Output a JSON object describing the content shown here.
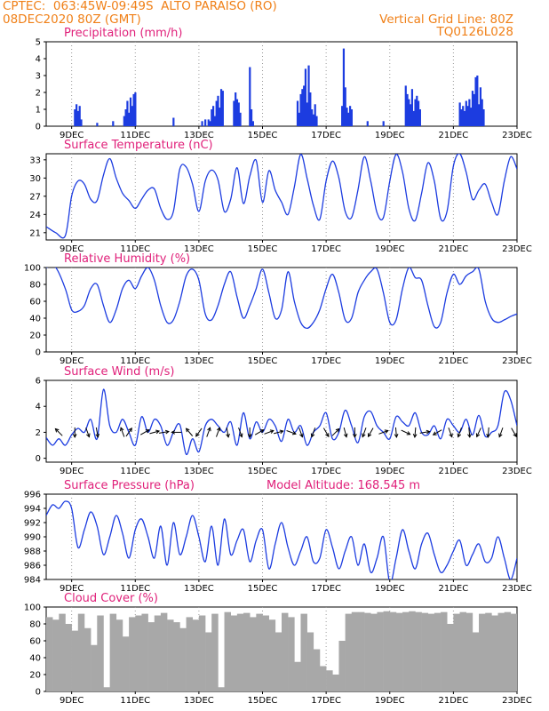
{
  "header": {
    "line1_left": "CPTEC:  063:45W-09:49S  ALTO PARAISO (RO)",
    "line2_left": "08DEC2020 80Z (GMT)",
    "line1_right": "Vertical Grid Line: 80Z",
    "line2_right": "TQ0126L028"
  },
  "colors": {
    "header": "#f08018",
    "title": "#e0207a",
    "line": "#1c3ce0",
    "bar": "#1c3ce0",
    "cloud": "#a8a8a8",
    "arrow": "#000000"
  },
  "chart_data": [
    {
      "type": "bar",
      "title": "Precipitation (mm/h)",
      "xlabel": "",
      "ylabel": "",
      "ylim": [
        0,
        5
      ],
      "yticks": [
        0,
        1,
        2,
        3,
        4,
        5
      ],
      "x_range_days": [
        8.2,
        23.0
      ],
      "x_ticks": [
        "9DEC",
        "11DEC",
        "13DEC",
        "15DEC",
        "17DEC",
        "19DEC",
        "21DEC",
        "23DEC"
      ],
      "x": [
        9.1,
        9.15,
        9.2,
        9.25,
        9.3,
        9.8,
        10.3,
        10.65,
        10.7,
        10.75,
        10.8,
        10.85,
        10.9,
        10.95,
        11.0,
        12.2,
        13.1,
        13.2,
        13.3,
        13.35,
        13.4,
        13.45,
        13.5,
        13.55,
        13.6,
        13.65,
        13.7,
        13.75,
        14.1,
        14.15,
        14.2,
        14.25,
        14.3,
        14.6,
        14.65,
        14.7,
        16.1,
        16.15,
        16.2,
        16.25,
        16.3,
        16.35,
        16.4,
        16.45,
        16.5,
        16.55,
        16.6,
        16.65,
        16.7,
        17.5,
        17.55,
        17.6,
        17.65,
        17.7,
        17.75,
        17.8,
        18.3,
        18.8,
        19.5,
        19.55,
        19.6,
        19.65,
        19.7,
        19.75,
        19.8,
        19.85,
        19.9,
        19.95,
        21.2,
        21.25,
        21.3,
        21.35,
        21.4,
        21.45,
        21.5,
        21.55,
        21.6,
        21.65,
        21.7,
        21.75,
        21.8,
        21.85,
        21.9,
        21.95
      ],
      "values": [
        1.0,
        1.3,
        0.9,
        1.2,
        0.4,
        0.2,
        0.3,
        0.6,
        1.0,
        1.5,
        0.8,
        1.7,
        1.2,
        1.9,
        2.0,
        0.5,
        0.3,
        0.4,
        0.4,
        0.3,
        1.0,
        1.2,
        0.6,
        1.5,
        1.8,
        1.1,
        2.2,
        2.1,
        1.5,
        2.0,
        1.6,
        1.4,
        0.8,
        3.5,
        1.0,
        0.3,
        1.5,
        0.8,
        1.9,
        2.2,
        2.4,
        3.4,
        1.4,
        3.6,
        2.0,
        1.0,
        0.7,
        1.3,
        0.6,
        1.2,
        4.6,
        2.3,
        1.1,
        0.8,
        1.2,
        1.0,
        0.3,
        0.3,
        2.4,
        1.9,
        1.6,
        1.3,
        2.2,
        0.9,
        1.6,
        1.8,
        1.5,
        1.0,
        1.4,
        1.0,
        1.2,
        0.9,
        1.5,
        1.2,
        1.6,
        1.1,
        2.1,
        1.9,
        2.9,
        3.0,
        1.3,
        2.3,
        1.6,
        1.0
      ]
    },
    {
      "type": "line",
      "title": "Surface Temperature (nC)",
      "xlabel": "",
      "ylabel": "",
      "ylim": [
        19.8,
        34.0
      ],
      "yticks": [
        21,
        24,
        27,
        30,
        33
      ],
      "x_range_days": [
        8.2,
        23.0
      ],
      "x_ticks": [
        "9DEC",
        "11DEC",
        "13DEC",
        "15DEC",
        "17DEC",
        "19DEC",
        "21DEC",
        "23DEC"
      ],
      "x": [
        8.2,
        8.5,
        8.8,
        9.0,
        9.2,
        9.4,
        9.6,
        9.8,
        10.0,
        10.2,
        10.4,
        10.6,
        10.8,
        11.0,
        11.2,
        11.4,
        11.6,
        11.8,
        12.0,
        12.2,
        12.4,
        12.6,
        12.8,
        13.0,
        13.2,
        13.4,
        13.6,
        13.8,
        14.0,
        14.2,
        14.4,
        14.6,
        14.8,
        15.0,
        15.2,
        15.4,
        15.6,
        15.8,
        16.0,
        16.2,
        16.4,
        16.6,
        16.8,
        17.0,
        17.2,
        17.4,
        17.6,
        17.8,
        18.0,
        18.2,
        18.4,
        18.6,
        18.8,
        19.0,
        19.2,
        19.4,
        19.6,
        19.8,
        20.0,
        20.2,
        20.4,
        20.6,
        20.8,
        21.0,
        21.2,
        21.4,
        21.6,
        21.8,
        22.0,
        22.2,
        22.4,
        22.6,
        22.8,
        23.0
      ],
      "series": [
        {
          "values": [
            22,
            21,
            20.5,
            27,
            29.5,
            29,
            26.5,
            26.3,
            30.5,
            33.2,
            30,
            27.5,
            26.3,
            25,
            26.5,
            28,
            28.2,
            25,
            23.2,
            24.5,
            31.5,
            31.8,
            29,
            24.5,
            29.5,
            31.3,
            29.7,
            24.5,
            26.5,
            31.7,
            25.8,
            30.3,
            32.9,
            26,
            31.2,
            28,
            26,
            24,
            28.5,
            33.9,
            30,
            25.5,
            23.2,
            29.5,
            32.8,
            30,
            24.5,
            23.5,
            28,
            33.5,
            29.5,
            24.3,
            23.5,
            29.5,
            33.9,
            31,
            25,
            23,
            27.5,
            32.5,
            29.5,
            23.3,
            24.5,
            32,
            34,
            31,
            26.5,
            28,
            29,
            26,
            24,
            29.5,
            33.5,
            31.5
          ]
        }
      ]
    },
    {
      "type": "line",
      "title": "Relative Humidity (%)",
      "xlabel": "",
      "ylabel": "",
      "ylim": [
        0,
        100
      ],
      "yticks": [
        0,
        20,
        40,
        60,
        80,
        100
      ],
      "x_range_days": [
        8.2,
        23.0
      ],
      "x_ticks": [
        "9DEC",
        "11DEC",
        "13DEC",
        "15DEC",
        "17DEC",
        "19DEC",
        "21DEC",
        "23DEC"
      ],
      "x": [
        8.2,
        8.5,
        8.8,
        9.0,
        9.2,
        9.4,
        9.6,
        9.8,
        10.0,
        10.2,
        10.4,
        10.6,
        10.8,
        11.0,
        11.2,
        11.4,
        11.6,
        11.8,
        12.0,
        12.2,
        12.4,
        12.6,
        12.8,
        13.0,
        13.2,
        13.4,
        13.6,
        13.8,
        14.0,
        14.2,
        14.4,
        14.6,
        14.8,
        15.0,
        15.2,
        15.4,
        15.6,
        15.8,
        16.0,
        16.2,
        16.4,
        16.6,
        16.8,
        17.0,
        17.2,
        17.4,
        17.6,
        17.8,
        18.0,
        18.2,
        18.4,
        18.6,
        18.8,
        19.0,
        19.2,
        19.4,
        19.6,
        19.8,
        20.0,
        20.2,
        20.4,
        20.6,
        20.8,
        21.0,
        21.2,
        21.4,
        21.6,
        21.8,
        22.0,
        22.2,
        22.4,
        22.6,
        22.8,
        23.0
      ],
      "series": [
        {
          "values": [
            100,
            100,
            75,
            50,
            48,
            55,
            75,
            80,
            55,
            35,
            50,
            75,
            85,
            75,
            90,
            100,
            85,
            55,
            35,
            38,
            60,
            90,
            98,
            85,
            45,
            38,
            55,
            80,
            95,
            65,
            40,
            55,
            75,
            98,
            70,
            40,
            50,
            95,
            60,
            35,
            28,
            35,
            50,
            75,
            92,
            70,
            38,
            40,
            70,
            85,
            95,
            98,
            70,
            35,
            38,
            75,
            100,
            88,
            85,
            55,
            30,
            35,
            70,
            92,
            80,
            90,
            95,
            98,
            60,
            40,
            35,
            38,
            42,
            45
          ]
        }
      ]
    },
    {
      "type": "line",
      "title": "Surface Wind (m/s)",
      "xlabel": "",
      "ylabel": "",
      "ylim": [
        -0.3,
        6
      ],
      "yticks": [
        0,
        2,
        4,
        6
      ],
      "x_range_days": [
        8.2,
        23.0
      ],
      "x_ticks": [
        "9DEC",
        "11DEC",
        "13DEC",
        "15DEC",
        "17DEC",
        "19DEC",
        "21DEC",
        "23DEC"
      ],
      "x": [
        8.2,
        8.4,
        8.6,
        8.8,
        9.0,
        9.2,
        9.4,
        9.6,
        9.8,
        10.0,
        10.2,
        10.4,
        10.6,
        10.8,
        11.0,
        11.2,
        11.4,
        11.6,
        11.8,
        12.0,
        12.2,
        12.4,
        12.6,
        12.8,
        13.0,
        13.2,
        13.4,
        13.6,
        13.8,
        14.0,
        14.2,
        14.4,
        14.6,
        14.8,
        15.0,
        15.2,
        15.4,
        15.6,
        15.8,
        16.0,
        16.2,
        16.4,
        16.6,
        16.8,
        17.0,
        17.2,
        17.4,
        17.6,
        17.8,
        18.0,
        18.2,
        18.4,
        18.6,
        18.8,
        19.0,
        19.2,
        19.4,
        19.6,
        19.8,
        20.0,
        20.2,
        20.4,
        20.6,
        20.8,
        21.0,
        21.2,
        21.4,
        21.6,
        21.8,
        22.0,
        22.2,
        22.4,
        22.6,
        22.8,
        23.0
      ],
      "series": [
        {
          "values": [
            1.6,
            1.0,
            1.5,
            1.0,
            1.8,
            2.3,
            2.0,
            3.0,
            1.5,
            5.3,
            2.5,
            2.0,
            3.0,
            2.0,
            1.0,
            3.2,
            2.0,
            3.0,
            2.5,
            1.0,
            2.0,
            2.6,
            0.3,
            1.5,
            0.5,
            2.5,
            3.0,
            2.5,
            2.0,
            2.8,
            1.0,
            3.5,
            1.5,
            2.8,
            2.0,
            3.0,
            2.5,
            1.3,
            3.0,
            2.0,
            2.5,
            1.0,
            2.0,
            2.5,
            3.5,
            1.5,
            2.0,
            3.7,
            2.5,
            1.2,
            3.2,
            3.6,
            2.5,
            2.0,
            1.5,
            3.2,
            2.8,
            2.5,
            3.5,
            2.0,
            1.8,
            2.5,
            1.5,
            3.0,
            2.5,
            2.0,
            3.0,
            1.8,
            3.3,
            1.7,
            2.0,
            2.5,
            5.1,
            4.5,
            2.5
          ]
        }
      ]
    },
    {
      "type": "line",
      "title": "Surface Pressure (hPa)",
      "annotation": "Model Altitude: 168.545 m",
      "xlabel": "",
      "ylabel": "",
      "ylim": [
        984,
        996
      ],
      "yticks": [
        984,
        986,
        988,
        990,
        992,
        994,
        996
      ],
      "x_range_days": [
        8.2,
        23.0
      ],
      "x_ticks": [
        "9DEC",
        "11DEC",
        "13DEC",
        "15DEC",
        "17DEC",
        "19DEC",
        "21DEC",
        "23DEC"
      ],
      "x": [
        8.2,
        8.4,
        8.6,
        8.8,
        9.0,
        9.2,
        9.4,
        9.6,
        9.8,
        10.0,
        10.2,
        10.4,
        10.6,
        10.8,
        11.0,
        11.2,
        11.4,
        11.6,
        11.8,
        12.0,
        12.2,
        12.4,
        12.6,
        12.8,
        13.0,
        13.2,
        13.4,
        13.6,
        13.8,
        14.0,
        14.2,
        14.4,
        14.6,
        14.8,
        15.0,
        15.2,
        15.4,
        15.6,
        15.8,
        16.0,
        16.2,
        16.4,
        16.6,
        16.8,
        17.0,
        17.2,
        17.4,
        17.6,
        17.8,
        18.0,
        18.2,
        18.4,
        18.6,
        18.8,
        19.0,
        19.2,
        19.4,
        19.6,
        19.8,
        20.0,
        20.2,
        20.4,
        20.6,
        20.8,
        21.0,
        21.2,
        21.4,
        21.6,
        21.8,
        22.0,
        22.2,
        22.4,
        22.6,
        22.8,
        23.0
      ],
      "series": [
        {
          "values": [
            993,
            994.5,
            994,
            995,
            994,
            988.5,
            991,
            993.5,
            991.5,
            987.5,
            990,
            993,
            990.5,
            987,
            991,
            992.5,
            990,
            987,
            991.5,
            986,
            992,
            987.5,
            990,
            993,
            990,
            986.5,
            991.5,
            986,
            992.5,
            987.5,
            989.5,
            991,
            986.5,
            989.5,
            991,
            985.5,
            989,
            992,
            988.5,
            986,
            988,
            990,
            986.5,
            987,
            991,
            988.5,
            985.5,
            988,
            990,
            986,
            989,
            985,
            987,
            990,
            983.5,
            987,
            991,
            988,
            985.5,
            989,
            990.5,
            987.5,
            985,
            986,
            988,
            989.5,
            986,
            987.5,
            989,
            986.5,
            987,
            990,
            987,
            984,
            987
          ]
        }
      ]
    },
    {
      "type": "area",
      "title": "Cloud Cover (%)",
      "xlabel": "",
      "ylabel": "",
      "ylim": [
        0,
        100
      ],
      "yticks": [
        0,
        20,
        40,
        60,
        80,
        100
      ],
      "x_range_days": [
        8.2,
        23.0
      ],
      "x_ticks": [
        "9DEC",
        "11DEC",
        "13DEC",
        "15DEC",
        "17DEC",
        "19DEC",
        "21DEC",
        "23DEC"
      ],
      "x": [
        8.2,
        8.4,
        8.6,
        8.8,
        9.0,
        9.2,
        9.4,
        9.6,
        9.8,
        10.0,
        10.2,
        10.4,
        10.6,
        10.8,
        11.0,
        11.2,
        11.4,
        11.6,
        11.8,
        12.0,
        12.2,
        12.4,
        12.6,
        12.8,
        13.0,
        13.2,
        13.4,
        13.6,
        13.8,
        14.0,
        14.2,
        14.4,
        14.6,
        14.8,
        15.0,
        15.2,
        15.4,
        15.6,
        15.8,
        16.0,
        16.2,
        16.4,
        16.6,
        16.8,
        17.0,
        17.2,
        17.4,
        17.6,
        17.8,
        18.0,
        18.2,
        18.4,
        18.6,
        18.8,
        19.0,
        19.2,
        19.4,
        19.6,
        19.8,
        20.0,
        20.2,
        20.4,
        20.6,
        20.8,
        21.0,
        21.2,
        21.4,
        21.6,
        21.8,
        22.0,
        22.2,
        22.4,
        22.6,
        22.8,
        23.0
      ],
      "series": [
        {
          "values": [
            88,
            85,
            92,
            80,
            72,
            92,
            75,
            55,
            90,
            5,
            92,
            85,
            65,
            88,
            90,
            92,
            82,
            90,
            93,
            85,
            82,
            75,
            88,
            85,
            90,
            70,
            92,
            5,
            94,
            90,
            92,
            93,
            88,
            92,
            90,
            85,
            70,
            93,
            88,
            35,
            92,
            70,
            50,
            30,
            25,
            20,
            60,
            92,
            94,
            94,
            93,
            92,
            94,
            95,
            94,
            93,
            94,
            95,
            94,
            93,
            92,
            93,
            94,
            80,
            92,
            94,
            93,
            70,
            92,
            93,
            90,
            93,
            94,
            92,
            95
          ]
        }
      ]
    }
  ],
  "wind_arrows": {
    "note_directions": "degrees the arrow points toward, 0 = up, clockwise",
    "x": [
      8.6,
      9.1,
      9.5,
      9.8,
      10.6,
      10.8,
      11.3,
      11.6,
      11.9,
      12.3,
      12.7,
      13.0,
      13.3,
      13.6,
      13.9,
      14.3,
      14.6,
      14.9,
      15.2,
      15.5,
      15.9,
      16.2,
      16.6,
      17.0,
      17.3,
      17.6,
      17.9,
      18.2,
      18.4,
      18.8,
      19.2,
      19.5,
      19.8,
      20.1,
      20.5,
      20.9,
      21.2,
      21.5,
      21.8,
      22.1,
      22.5,
      22.9
    ],
    "direction_deg": [
      315,
      180,
      160,
      170,
      340,
      35,
      60,
      75,
      80,
      270,
      320,
      215,
      20,
      20,
      170,
      160,
      180,
      60,
      70,
      75,
      110,
      160,
      200,
      150,
      45,
      165,
      180,
      200,
      210,
      70,
      175,
      115,
      185,
      80,
      240,
      160,
      200,
      175,
      205,
      185,
      200,
      150
    ]
  }
}
